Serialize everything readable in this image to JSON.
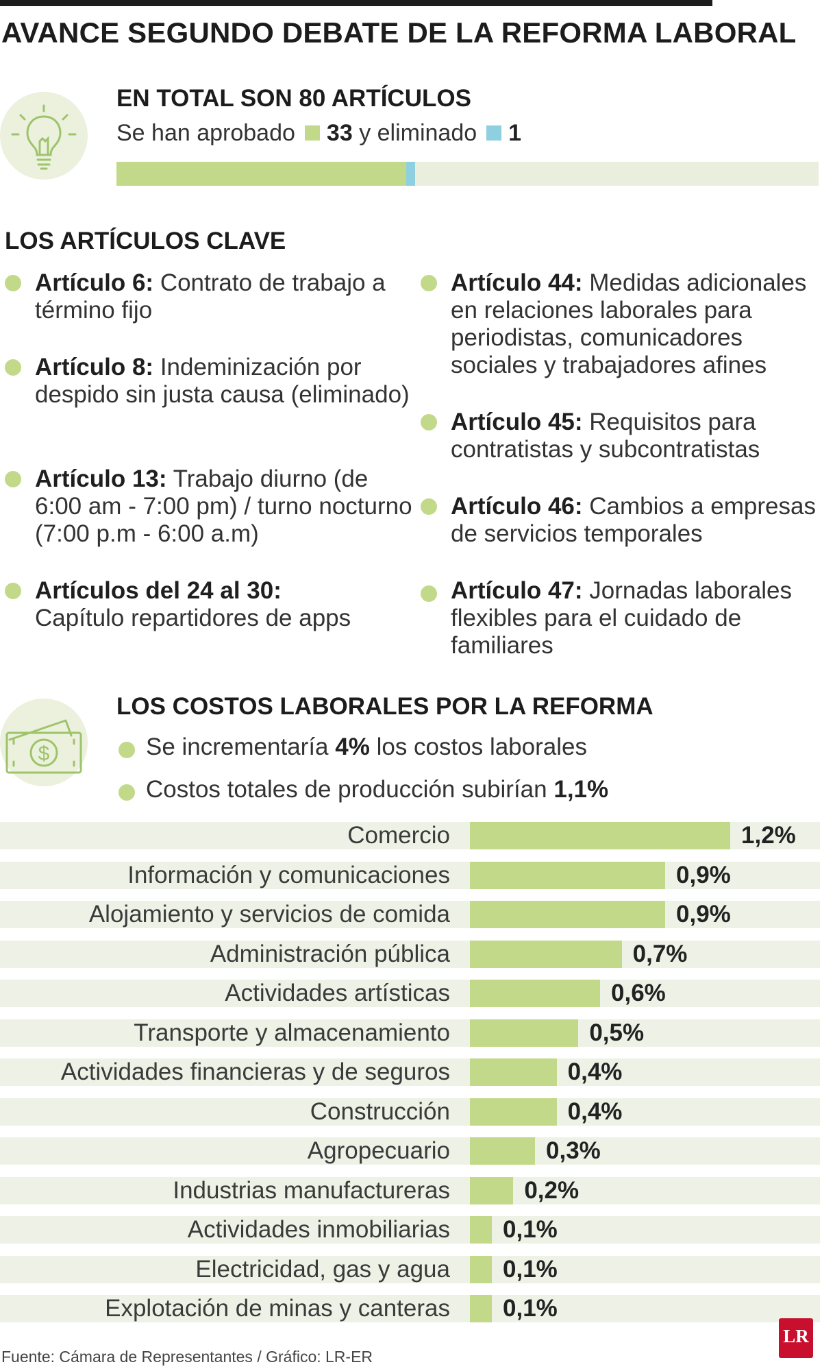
{
  "title": "AVANCE SEGUNDO DEBATE DE LA REFORMA LABORAL",
  "colors": {
    "green": "#c3d98a",
    "blue": "#8ecfe0",
    "row_bg": "#eef2e6",
    "brand_red": "#c8102e"
  },
  "total": {
    "heading": "EN TOTAL SON 80 ARTÍCULOS",
    "prefix": "Se han aprobado",
    "approved_count": "33",
    "middle": "y eliminado",
    "eliminated_count": "1",
    "total_articles": 80,
    "approved": 33,
    "eliminated": 1
  },
  "key_articles": {
    "heading": "LOS ARTÍCULOS CLAVE",
    "left": [
      {
        "label": "Artículo 6:",
        "text": "Contrato de trabajo a término fijo"
      },
      {
        "label": "Artículo 8:",
        "text": "Indeminización por despido sin justa causa (eliminado)"
      },
      {
        "label": "Artículo 13:",
        "text": "Trabajo diurno (de 6:00 am - 7:00 pm) / turno nocturno (7:00 p.m - 6:00 a.m)"
      },
      {
        "label": "Artículos del 24 al 30:",
        "text": "Capítulo repartidores de apps"
      }
    ],
    "right": [
      {
        "label": "Artículo 44:",
        "text": "Medidas adicionales en relaciones laborales para periodistas, comunicadores sociales y trabajadores afines"
      },
      {
        "label": "Artículo 45:",
        "text": "Requisitos para contratistas y subcontratistas"
      },
      {
        "label": "Artículo 46:",
        "text": "Cambios a empresas de servicios temporales"
      },
      {
        "label": "Artículo 47:",
        "text": "Jornadas laborales flexibles para el cuidado de familiares"
      }
    ]
  },
  "costs": {
    "heading": "LOS COSTOS LABORALES POR LA REFORMA",
    "item1_pre": "Se incrementaría",
    "item1_val": "4%",
    "item1_post": "los costos laborales",
    "item2_pre": "Costos totales de producción subirían",
    "item2_val": "1,1%"
  },
  "chart_data": {
    "type": "bar",
    "orientation": "horizontal",
    "title": "",
    "categories": [
      "Comercio",
      "Información y comunicaciones",
      "Alojamiento y servicios de comida",
      "Administración pública",
      "Actividades artísticas",
      "Transporte y almacenamiento",
      "Actividades financieras y de seguros",
      "Construcción",
      "Agropecuario",
      "Industrias manufactureras",
      "Actividades inmobiliarias",
      "Electricidad, gas y agua",
      "Explotación de minas y canteras"
    ],
    "values": [
      1.2,
      0.9,
      0.9,
      0.7,
      0.6,
      0.5,
      0.4,
      0.4,
      0.3,
      0.2,
      0.1,
      0.1,
      0.1
    ],
    "labels": [
      "1,2%",
      "0,9%",
      "0,9%",
      "0,7%",
      "0,6%",
      "0,5%",
      "0,4%",
      "0,4%",
      "0,3%",
      "0,2%",
      "0,1%",
      "0,1%",
      "0,1%"
    ],
    "unit": "%",
    "xlim": [
      0,
      1.2
    ]
  },
  "source": "Fuente: Cámara de Representantes / Gráfico: LR-ER",
  "logo_text": "LR"
}
